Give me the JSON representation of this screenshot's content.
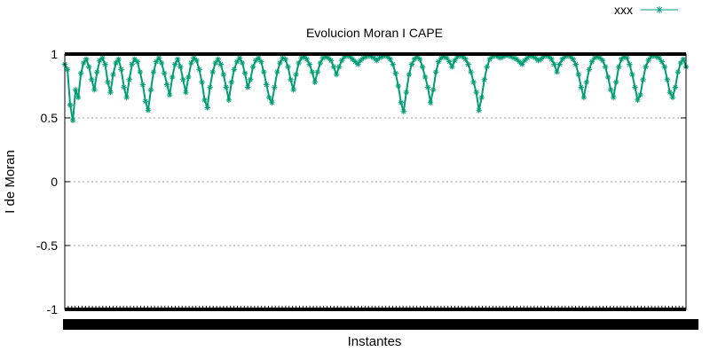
{
  "chart_data": {
    "type": "line",
    "title": "Evolucion Moran I CAPE",
    "xlabel": "Instantes",
    "ylabel": "I de Moran",
    "ylim": [
      -1,
      1
    ],
    "yticks": [
      -1,
      -0.5,
      0,
      0.5,
      1
    ],
    "ytick_labels": [
      "-1",
      "-0.5",
      "0",
      "0.5",
      "1"
    ],
    "grid": true,
    "legend_position": "top-right",
    "marker": "asterisk",
    "series": [
      {
        "name": "xxx",
        "color": "#009e73",
        "x_range": [
          0,
          1400
        ],
        "values": [
          0.92,
          0.88,
          0.6,
          0.48,
          0.72,
          0.66,
          0.85,
          0.93,
          0.96,
          0.9,
          0.8,
          0.72,
          0.86,
          0.95,
          0.97,
          0.92,
          0.78,
          0.7,
          0.84,
          0.93,
          0.96,
          0.88,
          0.74,
          0.66,
          0.8,
          0.92,
          0.96,
          0.94,
          0.86,
          0.76,
          0.63,
          0.56,
          0.72,
          0.86,
          0.94,
          0.97,
          0.93,
          0.85,
          0.76,
          0.68,
          0.82,
          0.92,
          0.96,
          0.9,
          0.8,
          0.7,
          0.82,
          0.93,
          0.97,
          0.95,
          0.88,
          0.78,
          0.64,
          0.58,
          0.74,
          0.86,
          0.93,
          0.96,
          0.92,
          0.84,
          0.74,
          0.64,
          0.78,
          0.88,
          0.94,
          0.97,
          0.93,
          0.85,
          0.74,
          0.8,
          0.9,
          0.95,
          0.97,
          0.94,
          0.86,
          0.76,
          0.66,
          0.62,
          0.74,
          0.86,
          0.93,
          0.97,
          0.96,
          0.9,
          0.8,
          0.72,
          0.84,
          0.93,
          0.97,
          0.98,
          0.96,
          0.92,
          0.86,
          0.78,
          0.86,
          0.93,
          0.97,
          0.98,
          0.97,
          0.95,
          0.9,
          0.84,
          0.9,
          0.95,
          0.98,
          0.99,
          0.98,
          0.96,
          0.94,
          0.92,
          0.95,
          0.97,
          0.98,
          0.99,
          0.98,
          0.97,
          0.95,
          0.97,
          0.98,
          0.99,
          0.98,
          0.96,
          0.92,
          0.85,
          0.75,
          0.62,
          0.55,
          0.7,
          0.84,
          0.92,
          0.96,
          0.98,
          0.96,
          0.9,
          0.82,
          0.74,
          0.62,
          0.72,
          0.86,
          0.94,
          0.97,
          0.98,
          0.97,
          0.94,
          0.9,
          0.95,
          0.98,
          0.99,
          0.98,
          0.96,
          0.92,
          0.86,
          0.78,
          0.7,
          0.56,
          0.66,
          0.8,
          0.9,
          0.96,
          0.98,
          0.99,
          0.98,
          0.97,
          0.98,
          0.99,
          0.99,
          0.98,
          0.97,
          0.96,
          0.94,
          0.92,
          0.95,
          0.97,
          0.99,
          0.98,
          0.97,
          0.95,
          0.96,
          0.98,
          0.99,
          0.98,
          0.96,
          0.92,
          0.86,
          0.92,
          0.96,
          0.98,
          0.99,
          0.98,
          0.96,
          0.92,
          0.84,
          0.74,
          0.66,
          0.78,
          0.88,
          0.94,
          0.97,
          0.98,
          0.97,
          0.95,
          0.9,
          0.82,
          0.72,
          0.66,
          0.78,
          0.9,
          0.96,
          0.98,
          0.97,
          0.92,
          0.84,
          0.74,
          0.64,
          0.68,
          0.8,
          0.9,
          0.95,
          0.98,
          0.99,
          0.98,
          0.97,
          0.94,
          0.9,
          0.8,
          0.7,
          0.66,
          0.74,
          0.86,
          0.93,
          0.96,
          0.9
        ]
      }
    ]
  }
}
